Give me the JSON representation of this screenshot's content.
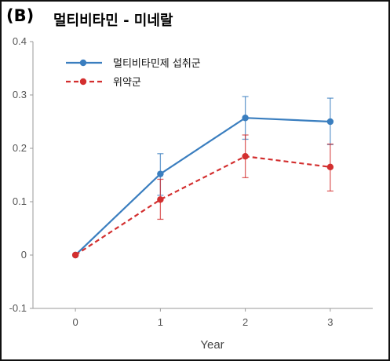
{
  "panel_label": "(B)",
  "chart_data": {
    "type": "line",
    "title": "멀티비타민 - 미네랄",
    "xlabel": "Year",
    "ylabel": "",
    "x": [
      0,
      1,
      2,
      3
    ],
    "xlim": [
      -0.5,
      3.5
    ],
    "ylim": [
      -0.1,
      0.4
    ],
    "yticks": [
      "-0.1",
      "0",
      "0.1",
      "0.2",
      "0.3",
      "0.4"
    ],
    "xticks": [
      "0",
      "1",
      "2",
      "3"
    ],
    "grid": false,
    "legend": "top-left",
    "series": [
      {
        "name": "멀티비타민제 섭취군",
        "color": "#3a7ebf",
        "dashed": false,
        "values": [
          0.0,
          0.152,
          0.257,
          0.25
        ],
        "err_low": [
          0.0,
          0.112,
          0.217,
          0.207
        ],
        "err_high": [
          0.0,
          0.19,
          0.297,
          0.294
        ]
      },
      {
        "name": "위약군",
        "color": "#d32f2f",
        "dashed": true,
        "values": [
          0.0,
          0.104,
          0.185,
          0.165
        ],
        "err_low": [
          0.0,
          0.067,
          0.145,
          0.12
        ],
        "err_high": [
          0.0,
          0.142,
          0.225,
          0.208
        ]
      }
    ]
  }
}
